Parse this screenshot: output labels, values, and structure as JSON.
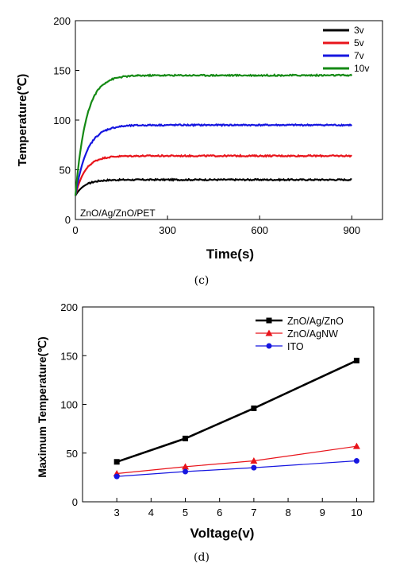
{
  "chart_data": [
    {
      "type": "line",
      "caption": "(c)",
      "xlabel": "Time(s)",
      "ylabel": "Temperature(℃)",
      "xlim": [
        0,
        1000
      ],
      "ylim": [
        0,
        200
      ],
      "xticks": [
        0,
        300,
        600,
        900
      ],
      "yticks": [
        0,
        50,
        100,
        150,
        200
      ],
      "annotation": "ZnO/Ag/ZnO/PET",
      "legend_position": "top-right",
      "series": [
        {
          "name": "3v",
          "color": "#000000",
          "start": 24,
          "plateau": 40,
          "tau": 30
        },
        {
          "name": "5v",
          "color": "#e8141b",
          "start": 24,
          "plateau": 64,
          "tau": 32
        },
        {
          "name": "7v",
          "color": "#1616e0",
          "start": 24,
          "plateau": 95,
          "tau": 38
        },
        {
          "name": "10v",
          "color": "#158a15",
          "start": 24,
          "plateau": 145,
          "tau": 35
        }
      ],
      "x_end": 900
    },
    {
      "type": "line",
      "caption": "(d)",
      "xlabel": "Voltage(v)",
      "ylabel": "Maximum Temperature(℃)",
      "xlim": [
        2,
        10.5
      ],
      "ylim": [
        0,
        200
      ],
      "xticks": [
        3,
        4,
        5,
        6,
        7,
        8,
        9,
        10
      ],
      "yticks": [
        0,
        50,
        100,
        150,
        200
      ],
      "legend_position": "top-right",
      "series": [
        {
          "name": "ZnO/Ag/ZnO",
          "color": "#000000",
          "marker": "square",
          "x": [
            3,
            5,
            7,
            10
          ],
          "y": [
            41,
            65,
            96,
            145
          ]
        },
        {
          "name": "ZnO/AgNW",
          "color": "#e8141b",
          "marker": "triangle",
          "x": [
            3,
            5,
            7,
            10
          ],
          "y": [
            29,
            36,
            42,
            57
          ]
        },
        {
          "name": "ITO",
          "color": "#1616e0",
          "marker": "circle",
          "x": [
            3,
            5,
            7,
            10
          ],
          "y": [
            26,
            31,
            35,
            42
          ]
        }
      ]
    }
  ]
}
